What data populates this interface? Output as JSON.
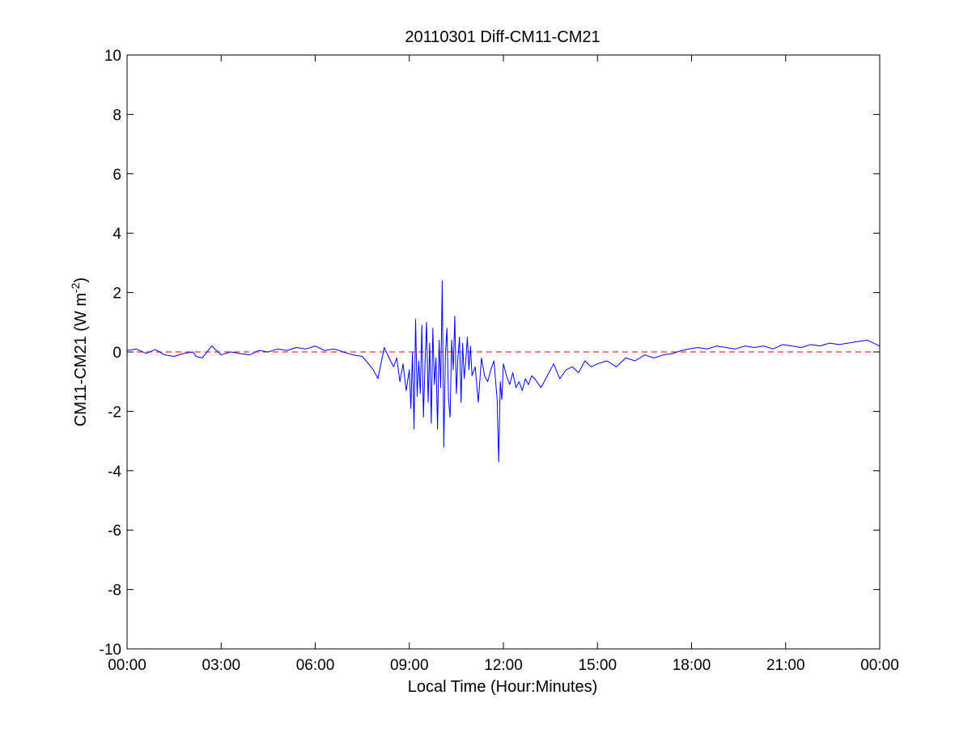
{
  "chart_data": {
    "type": "line",
    "title": "20110301 Diff-CM11-CM21",
    "xlabel": "Local Time (Hour:Minutes)",
    "ylabel": {
      "prefix": "CM11-CM21 (W m",
      "superscript": "-2",
      "suffix": ")"
    },
    "xlim": [
      0,
      24
    ],
    "ylim": [
      -10,
      10
    ],
    "x_unit": "hours",
    "x_ticks": [
      0,
      3,
      6,
      9,
      12,
      15,
      18,
      21,
      24
    ],
    "x_tick_labels": [
      "00:00",
      "03:00",
      "06:00",
      "09:00",
      "12:00",
      "15:00",
      "18:00",
      "21:00",
      "00:00"
    ],
    "y_ticks": [
      -10,
      -8,
      -6,
      -4,
      -2,
      0,
      2,
      4,
      6,
      8,
      10
    ],
    "y_tick_labels": [
      "-10",
      "-8",
      "-6",
      "-4",
      "-2",
      "0",
      "2",
      "4",
      "6",
      "8",
      "10"
    ],
    "grid": false,
    "reference_line": {
      "y": 0,
      "style": "dashed",
      "color": "#ff0000"
    },
    "series": [
      {
        "color": "#0000ff",
        "x": [
          0.0,
          0.3,
          0.6,
          0.9,
          1.2,
          1.5,
          1.8,
          2.1,
          2.2,
          2.4,
          2.7,
          3.0,
          3.3,
          3.6,
          3.9,
          4.2,
          4.5,
          4.8,
          5.1,
          5.4,
          5.7,
          6.0,
          6.3,
          6.6,
          6.9,
          7.2,
          7.5,
          7.7,
          7.85,
          8.0,
          8.2,
          8.4,
          8.5,
          8.6,
          8.7,
          8.8,
          8.9,
          9.0,
          9.05,
          9.1,
          9.15,
          9.2,
          9.25,
          9.3,
          9.35,
          9.4,
          9.45,
          9.5,
          9.55,
          9.6,
          9.65,
          9.7,
          9.75,
          9.8,
          9.85,
          9.9,
          9.95,
          10.0,
          10.05,
          10.1,
          10.15,
          10.2,
          10.25,
          10.3,
          10.35,
          10.4,
          10.45,
          10.5,
          10.55,
          10.6,
          10.65,
          10.7,
          10.75,
          10.8,
          10.85,
          10.9,
          10.95,
          11.0,
          11.1,
          11.2,
          11.3,
          11.4,
          11.5,
          11.6,
          11.7,
          11.8,
          11.85,
          11.9,
          11.95,
          12.0,
          12.1,
          12.2,
          12.3,
          12.4,
          12.5,
          12.6,
          12.7,
          12.8,
          12.9,
          13.0,
          13.2,
          13.4,
          13.6,
          13.8,
          14.0,
          14.2,
          14.4,
          14.6,
          14.8,
          15.0,
          15.3,
          15.6,
          15.9,
          16.2,
          16.5,
          16.8,
          17.1,
          17.4,
          17.7,
          17.9,
          18.2,
          18.5,
          18.8,
          19.1,
          19.4,
          19.7,
          20.0,
          20.3,
          20.6,
          20.9,
          21.2,
          21.5,
          21.8,
          22.1,
          22.4,
          22.7,
          23.0,
          23.3,
          23.6,
          24.0
        ],
        "y": [
          0.05,
          0.1,
          -0.05,
          0.08,
          -0.1,
          -0.15,
          -0.05,
          0.0,
          -0.15,
          -0.2,
          0.2,
          -0.1,
          0.0,
          -0.05,
          -0.1,
          0.05,
          0.0,
          0.1,
          0.05,
          0.15,
          0.1,
          0.2,
          0.05,
          0.1,
          0.0,
          -0.1,
          -0.15,
          -0.4,
          -0.6,
          -0.9,
          0.15,
          -0.3,
          -0.5,
          -0.2,
          -1.0,
          -0.4,
          -1.3,
          -0.6,
          -1.9,
          0.0,
          -2.6,
          1.1,
          -1.5,
          -0.3,
          -1.4,
          0.9,
          -2.2,
          -0.4,
          1.0,
          -1.7,
          0.3,
          -2.4,
          0.8,
          -1.1,
          -0.2,
          -2.6,
          0.4,
          -1.2,
          2.4,
          -3.2,
          -0.1,
          0.8,
          -1.6,
          -2.2,
          0.4,
          -0.6,
          1.2,
          -1.4,
          -0.2,
          0.5,
          -1.7,
          0.3,
          -0.9,
          -0.3,
          0.5,
          -0.6,
          0.2,
          -0.8,
          -0.5,
          -1.7,
          -0.2,
          -0.8,
          -1.0,
          -0.6,
          -0.3,
          -1.6,
          -3.7,
          -1.0,
          -1.6,
          -0.4,
          -0.8,
          -1.1,
          -0.7,
          -1.2,
          -1.0,
          -1.3,
          -0.9,
          -1.1,
          -0.8,
          -0.9,
          -1.2,
          -0.8,
          -0.4,
          -0.9,
          -0.6,
          -0.5,
          -0.7,
          -0.3,
          -0.5,
          -0.4,
          -0.3,
          -0.5,
          -0.2,
          -0.3,
          -0.1,
          -0.2,
          -0.1,
          -0.05,
          0.05,
          0.1,
          0.15,
          0.1,
          0.2,
          0.15,
          0.1,
          0.2,
          0.15,
          0.2,
          0.1,
          0.25,
          0.2,
          0.15,
          0.25,
          0.2,
          0.3,
          0.25,
          0.3,
          0.35,
          0.4,
          0.2
        ]
      }
    ]
  }
}
